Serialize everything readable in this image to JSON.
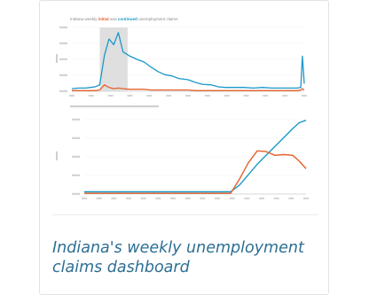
{
  "card": {
    "title_line1": "Indiana's weekly unemployment",
    "title_line2": "claims dashboard"
  },
  "colors": {
    "initial": "#e4602b",
    "continued": "#1a98c9",
    "title_link": "#2d6f94",
    "recession_shade": "#d9d9d9"
  },
  "chart_data": [
    {
      "type": "line",
      "title": "Indiana weekly initial and continued unemployment claims",
      "title_highlight_initial": "initial",
      "title_highlight_continued": "continued",
      "x": [
        0,
        0.03,
        0.06,
        0.08,
        0.1,
        0.12,
        0.14,
        0.16,
        0.18,
        0.2,
        0.22,
        0.25,
        0.28,
        0.31,
        0.34,
        0.37,
        0.4,
        0.43,
        0.46,
        0.5,
        0.53,
        0.56,
        0.6,
        0.63,
        0.66,
        0.7,
        0.74,
        0.78,
        0.82,
        0.86,
        0.9,
        0.94,
        0.97,
        0.985,
        0.992,
        1.0
      ],
      "shaded_region": [
        0.12,
        0.24
      ],
      "series": [
        {
          "color": "#1a98c9",
          "values": [
            0.04,
            0.05,
            0.05,
            0.06,
            0.07,
            0.1,
            0.56,
            0.82,
            0.73,
            0.92,
            0.62,
            0.55,
            0.5,
            0.46,
            0.38,
            0.31,
            0.26,
            0.24,
            0.2,
            0.18,
            0.14,
            0.11,
            0.1,
            0.07,
            0.06,
            0.06,
            0.06,
            0.05,
            0.06,
            0.05,
            0.05,
            0.05,
            0.05,
            0.06,
            0.55,
            0.12
          ]
        },
        {
          "color": "#e4602b",
          "values": [
            0.01,
            0.01,
            0.01,
            0.01,
            0.01,
            0.02,
            0.1,
            0.06,
            0.04,
            0.05,
            0.04,
            0.03,
            0.03,
            0.03,
            0.02,
            0.02,
            0.02,
            0.02,
            0.02,
            0.02,
            0.01,
            0.01,
            0.01,
            0.01,
            0.01,
            0.01,
            0.01,
            0.01,
            0.01,
            0.01,
            0.01,
            0.01,
            0.01,
            0.02,
            0.04,
            0.02
          ]
        }
      ]
    },
    {
      "type": "line",
      "x": [
        0,
        0.1,
        0.2,
        0.3,
        0.4,
        0.5,
        0.6,
        0.66,
        0.7,
        0.74,
        0.78,
        0.82,
        0.86,
        0.9,
        0.94,
        0.97,
        1.0
      ],
      "series": [
        {
          "color": "#1a98c9",
          "values": [
            0.03,
            0.03,
            0.03,
            0.03,
            0.03,
            0.03,
            0.03,
            0.03,
            0.12,
            0.26,
            0.4,
            0.52,
            0.64,
            0.76,
            0.88,
            0.96,
            0.99
          ],
          "end_label": ""
        },
        {
          "color": "#e4602b",
          "values": [
            0.01,
            0.01,
            0.01,
            0.01,
            0.01,
            0.01,
            0.01,
            0.01,
            0.2,
            0.42,
            0.58,
            0.57,
            0.52,
            0.53,
            0.52,
            0.44,
            0.34
          ],
          "end_label": ""
        }
      ]
    }
  ]
}
